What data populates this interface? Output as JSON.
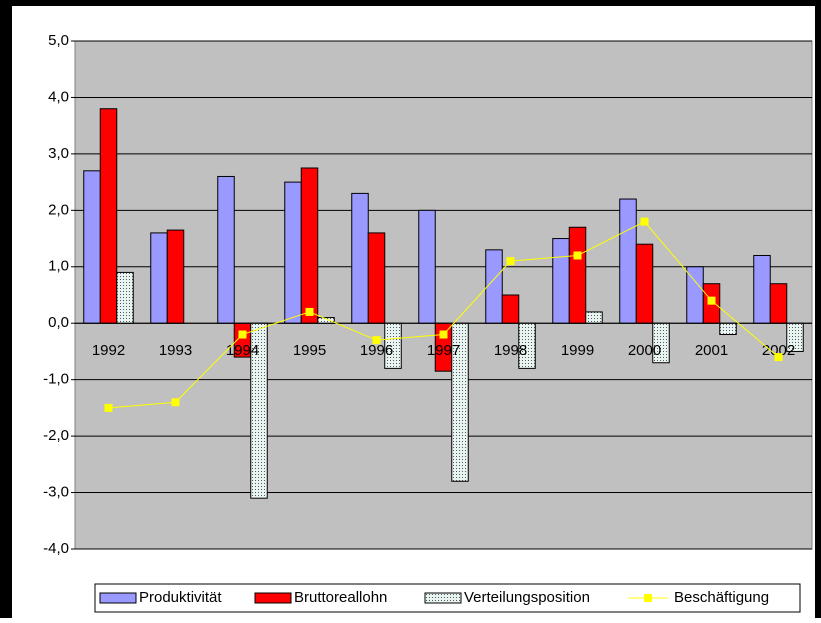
{
  "chart_data": {
    "type": "bar",
    "categories": [
      "1992",
      "1993",
      "1994",
      "1995",
      "1996",
      "1997",
      "1998",
      "1999",
      "2000",
      "2001",
      "2002"
    ],
    "series": [
      {
        "name": "Produktivität",
        "color": "#9999ff",
        "values": [
          2.7,
          1.6,
          2.6,
          2.5,
          2.3,
          2.0,
          1.3,
          1.5,
          2.2,
          1.0,
          1.2
        ]
      },
      {
        "name": "Bruttoreallohn",
        "color": "#ff0000",
        "values": [
          3.8,
          1.65,
          -0.6,
          2.75,
          1.6,
          -0.85,
          0.5,
          1.7,
          1.4,
          0.7,
          0.7
        ]
      },
      {
        "name": "Verteilungsposition",
        "color": "#e8f4f0",
        "pattern": "dotted",
        "values": [
          0.9,
          0,
          -3.1,
          0.1,
          -0.8,
          -2.8,
          -0.8,
          0.2,
          -0.7,
          -0.2,
          -0.5
        ]
      },
      {
        "name": "Beschäftigung",
        "type": "line",
        "color": "#ffff00",
        "values": [
          -1.5,
          -1.4,
          -0.2,
          0.2,
          -0.3,
          -0.2,
          1.1,
          1.2,
          1.8,
          0.4,
          -0.6
        ]
      }
    ],
    "ylim": [
      -4,
      5
    ],
    "yticks": [
      {
        "value": -4,
        "label": "-4,0"
      },
      {
        "value": -3,
        "label": "-3,0"
      },
      {
        "value": -2,
        "label": "-2,0"
      },
      {
        "value": -1,
        "label": "-1,0"
      },
      {
        "value": 0,
        "label": "0,0"
      },
      {
        "value": 1,
        "label": "1,0"
      },
      {
        "value": 2,
        "label": "2,0"
      },
      {
        "value": 3,
        "label": "3,0"
      },
      {
        "value": 4,
        "label": "4,0"
      },
      {
        "value": 5,
        "label": "5,0"
      }
    ],
    "grid": true,
    "plot_background": "#c0c0c0",
    "legend": "bottom"
  }
}
